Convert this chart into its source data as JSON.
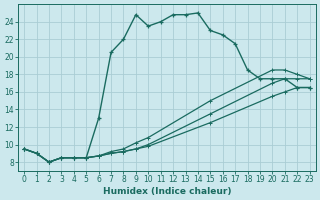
{
  "xlabel": "Humidex (Indice chaleur)",
  "bg_color": "#cce8ed",
  "grid_color": "#aacdd4",
  "line_color": "#1a6b60",
  "xlim": [
    -0.5,
    23.5
  ],
  "ylim": [
    7,
    26
  ],
  "xticks": [
    0,
    1,
    2,
    3,
    4,
    5,
    6,
    7,
    8,
    9,
    10,
    11,
    12,
    13,
    14,
    15,
    16,
    17,
    18,
    19,
    20,
    21,
    22,
    23
  ],
  "yticks": [
    8,
    10,
    12,
    14,
    16,
    18,
    20,
    22,
    24
  ],
  "line1_x": [
    0,
    1,
    2,
    3,
    4,
    5,
    6,
    7,
    8,
    9,
    10,
    11,
    12,
    13,
    14,
    15,
    16,
    17,
    18,
    19,
    20,
    21,
    22,
    23
  ],
  "line1_y": [
    9.5,
    9.0,
    8.0,
    8.5,
    8.5,
    8.5,
    13.0,
    20.5,
    22.0,
    24.8,
    23.5,
    24.0,
    24.8,
    24.8,
    25.0,
    23.0,
    22.5,
    21.5,
    18.5,
    17.5,
    17.5,
    17.5,
    16.5,
    16.5
  ],
  "line2_x": [
    0,
    1,
    2,
    3,
    4,
    5,
    6,
    7,
    8,
    9,
    10,
    15,
    20,
    21,
    22,
    23
  ],
  "line2_y": [
    9.5,
    9.0,
    8.0,
    8.5,
    8.5,
    8.5,
    8.7,
    9.0,
    9.2,
    9.5,
    9.8,
    12.5,
    15.5,
    16.0,
    16.5,
    16.5
  ],
  "line3_x": [
    0,
    1,
    2,
    3,
    4,
    5,
    6,
    7,
    8,
    9,
    10,
    15,
    20,
    21,
    22,
    23
  ],
  "line3_y": [
    9.5,
    9.0,
    8.0,
    8.5,
    8.5,
    8.5,
    8.7,
    9.0,
    9.2,
    9.5,
    10.0,
    13.5,
    17.0,
    17.5,
    17.5,
    17.5
  ],
  "line4_x": [
    0,
    1,
    2,
    3,
    4,
    5,
    6,
    7,
    8,
    9,
    10,
    15,
    20,
    21,
    22,
    23
  ],
  "line4_y": [
    9.5,
    9.0,
    8.0,
    8.5,
    8.5,
    8.5,
    8.7,
    9.2,
    9.5,
    10.2,
    10.8,
    15.0,
    18.5,
    18.5,
    18.0,
    17.5
  ]
}
